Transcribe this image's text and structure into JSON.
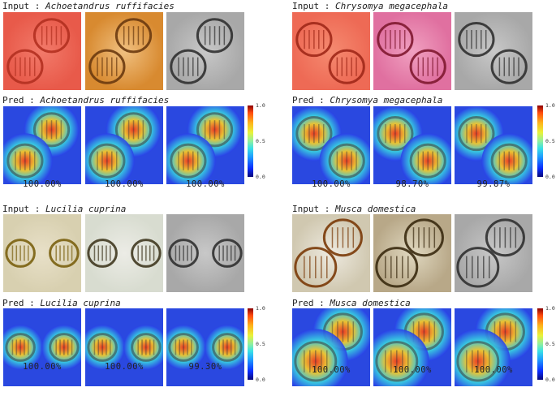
{
  "panels": [
    {
      "input_prefix": "Input : ",
      "species": "Achoetandrus ruffifacies",
      "pred_prefix": "Pred : ",
      "inputs": [
        "brown-red",
        "orange",
        "gray"
      ],
      "scores": [
        "100.00%",
        "100.00%",
        "100.00%"
      ]
    },
    {
      "input_prefix": "Input : ",
      "species": "Chrysomya megacephala",
      "pred_prefix": "Pred : ",
      "inputs": [
        "orange-red",
        "pink",
        "gray"
      ],
      "scores": [
        "100.00%",
        "98.70%",
        "99.87%"
      ]
    },
    {
      "input_prefix": "Input : ",
      "species": "Lucilia cuprina",
      "pred_prefix": "Pred : ",
      "inputs": [
        "yellow",
        "light",
        "gray"
      ],
      "scores": [
        "100.00%",
        "100.00%",
        "99.30%"
      ]
    },
    {
      "input_prefix": "Input : ",
      "species": "Musca domestica",
      "pred_prefix": "Pred : ",
      "inputs": [
        "amber",
        "textured",
        "gray"
      ],
      "scores": [
        "100.00%",
        "100.00%",
        "100.00%"
      ]
    }
  ],
  "colorbar": {
    "ticks": [
      "1.0",
      "0.5",
      "0.0"
    ]
  },
  "colors": {
    "heat_low": "#1a2cff",
    "heat_mid": "#39d6e0",
    "heat_high": "#ff3a10"
  }
}
